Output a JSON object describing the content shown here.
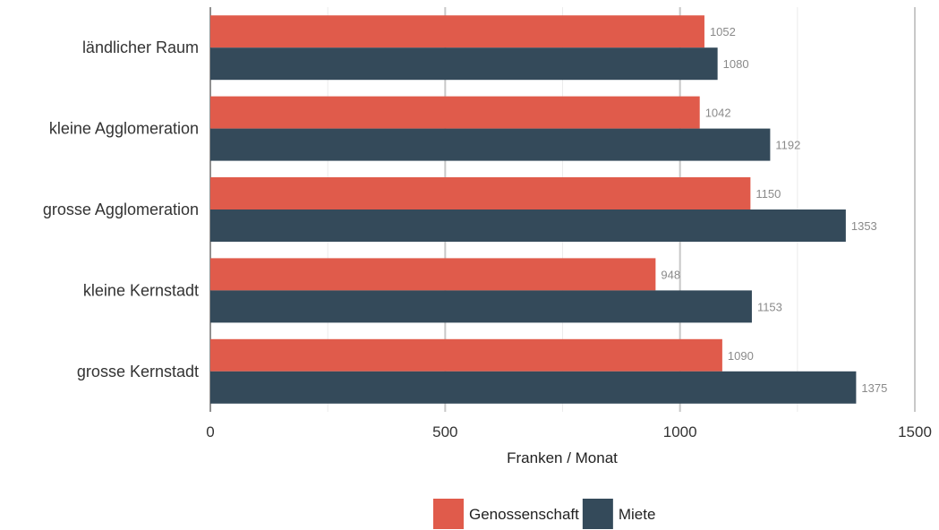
{
  "chart_data": {
    "type": "bar",
    "orientation": "horizontal",
    "categories": [
      "ländlicher Raum",
      "kleine Agglomeration",
      "grosse Agglomeration",
      "kleine Kernstadt",
      "grosse Kernstadt"
    ],
    "series": [
      {
        "name": "Genossenschaft",
        "values": [
          1052,
          1042,
          1150,
          948,
          1090
        ],
        "color": "#e05b4b"
      },
      {
        "name": "Miete",
        "values": [
          1080,
          1192,
          1353,
          1153,
          1375
        ],
        "color": "#344a5a"
      }
    ],
    "xlabel": "Franken / Monat",
    "xlim": [
      0,
      1500
    ],
    "xticks": [
      "0",
      "500",
      "1000",
      "1500"
    ],
    "legend_position": "bottom",
    "grid": true
  }
}
